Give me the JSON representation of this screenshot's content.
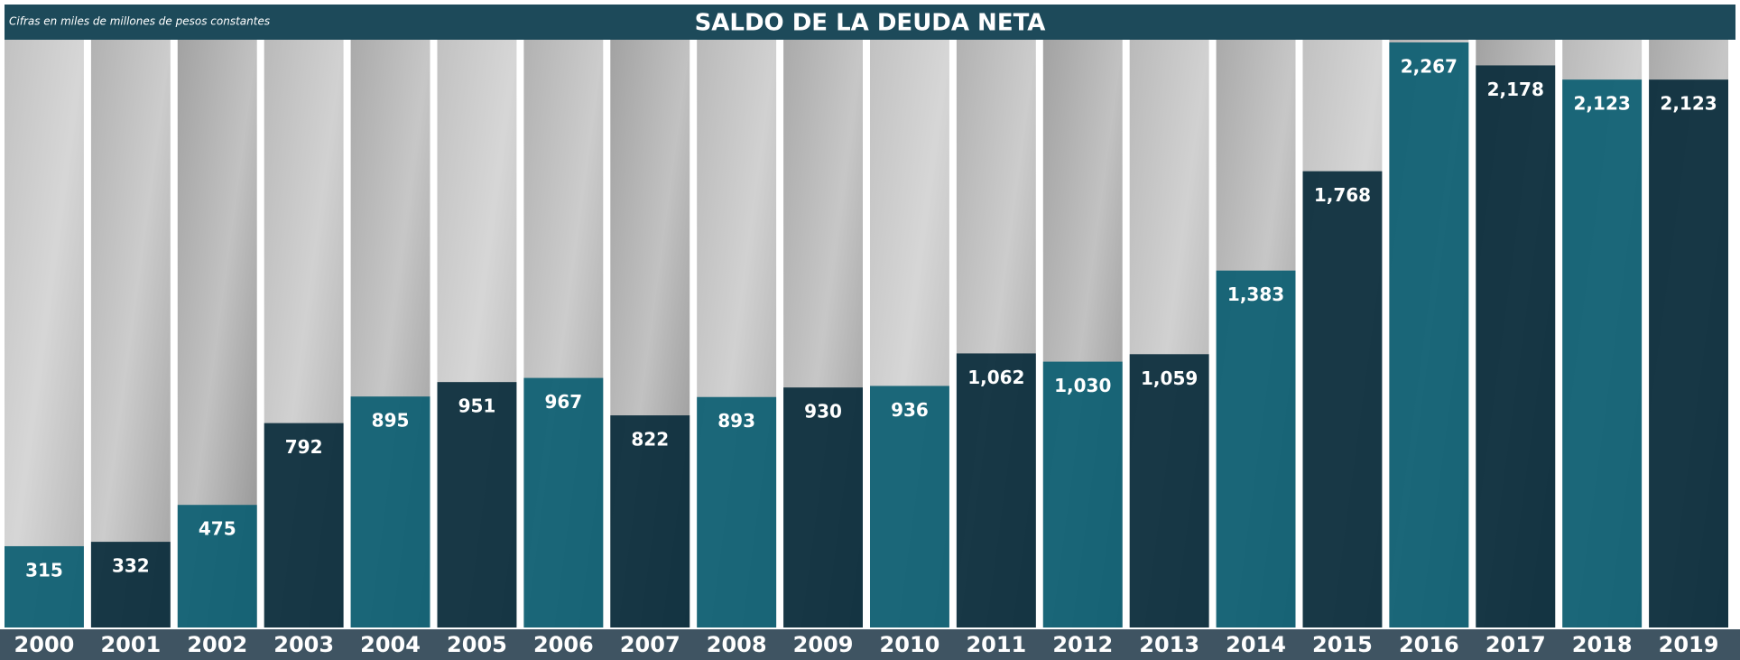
{
  "chart_data": {
    "type": "bar",
    "title": "SALDO DE LA DEUDA NETA",
    "subtitle": "Cifras en miles de millones de pesos constantes",
    "categories": [
      "2000",
      "2001",
      "2002",
      "2003",
      "2004",
      "2005",
      "2006",
      "2007",
      "2008",
      "2009",
      "2010",
      "2011",
      "2012",
      "2013",
      "2014",
      "2015",
      "2016",
      "2017",
      "2018",
      "2019"
    ],
    "values": [
      315,
      332,
      475,
      792,
      895,
      951,
      967,
      822,
      893,
      930,
      936,
      1062,
      1030,
      1059,
      1383,
      1768,
      2267,
      2178,
      2123,
      2123
    ],
    "value_labels": [
      "315",
      "332",
      "475",
      "792",
      "895",
      "951",
      "967",
      "822",
      "893",
      "930",
      "936",
      "1,062",
      "1,030",
      "1,059",
      "1,383",
      "1,768",
      "2,267",
      "2,178",
      "2,123",
      "2,123"
    ],
    "colors": [
      "#0d5f72",
      "#0a2c3b"
    ]
  }
}
